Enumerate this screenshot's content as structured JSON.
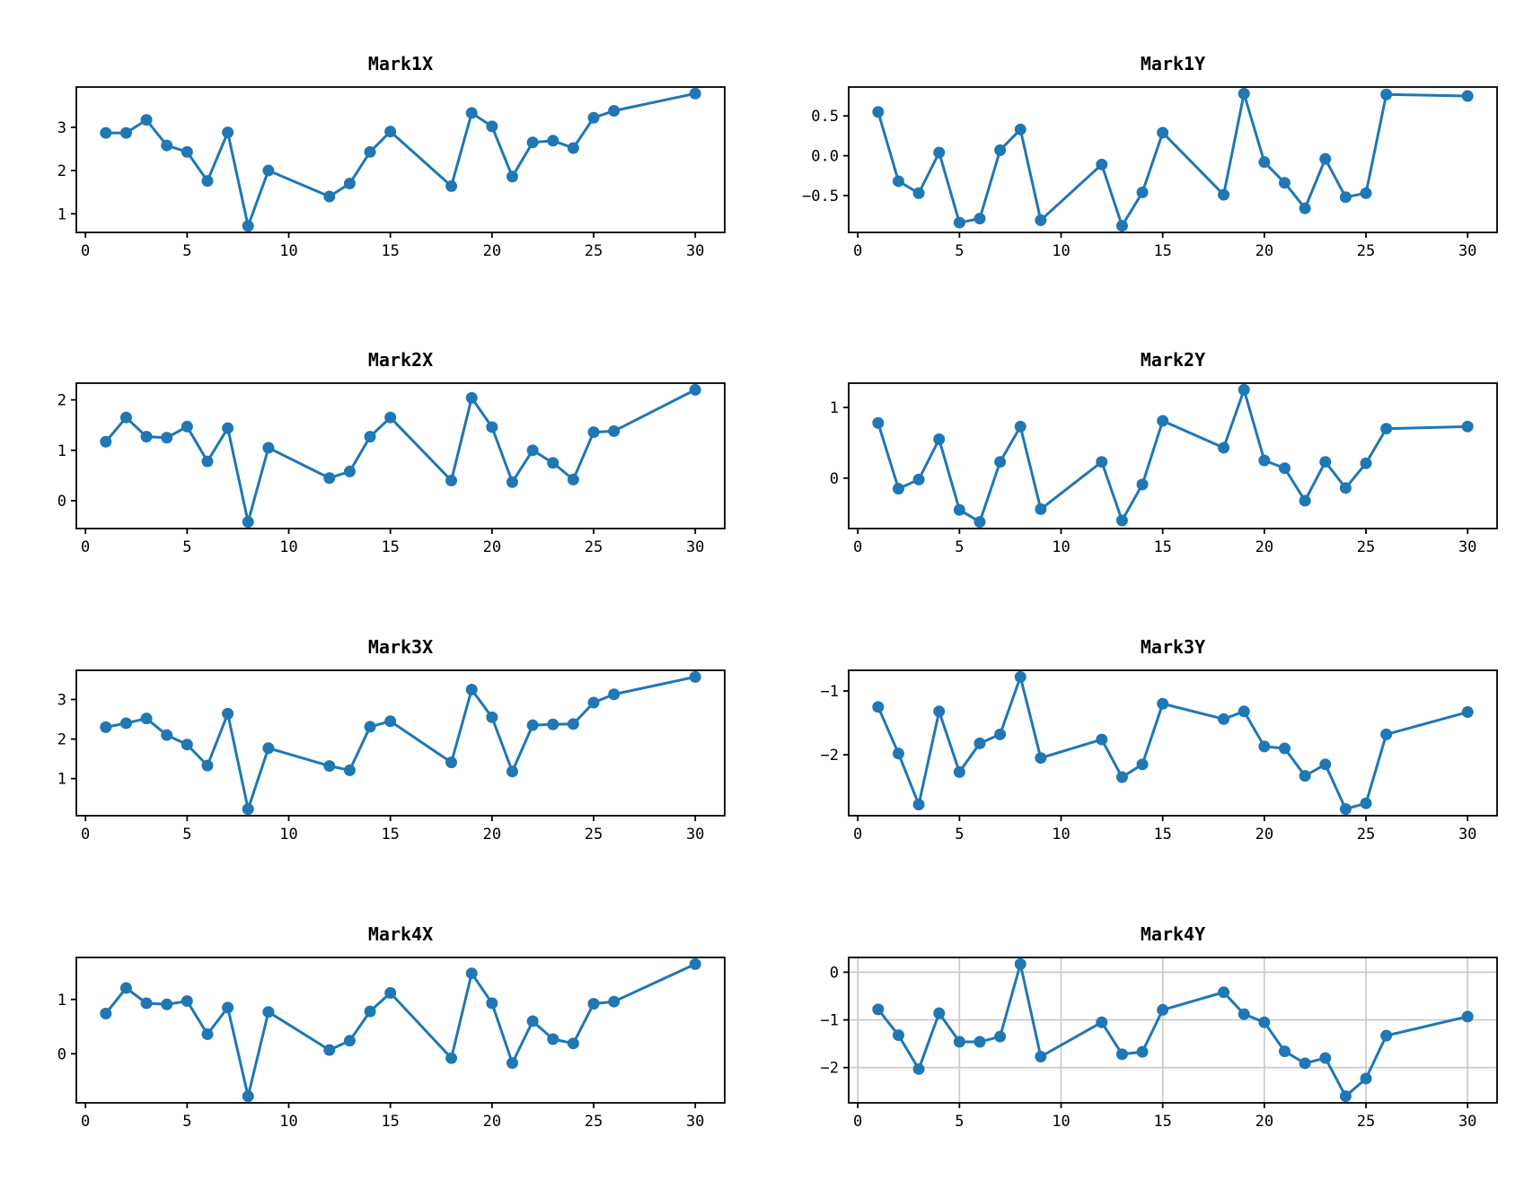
{
  "figure": {
    "background": "#ffffff",
    "line_color": "#1f77b4",
    "marker_color": "#1f77b4",
    "axis_color": "#000000",
    "grid_color": "#c8c8c8"
  },
  "chart_data": [
    {
      "type": "line",
      "title": "Mark1X",
      "x": [
        1,
        2,
        3,
        4,
        5,
        6,
        7,
        8,
        9,
        12,
        13,
        14,
        15,
        18,
        19,
        20,
        21,
        22,
        23,
        24,
        25,
        26,
        30
      ],
      "values": [
        2.87,
        2.87,
        3.17,
        2.58,
        2.43,
        1.76,
        2.88,
        0.72,
        2.0,
        1.4,
        1.7,
        2.43,
        2.9,
        1.64,
        3.33,
        3.02,
        1.86,
        2.65,
        2.69,
        2.52,
        3.22,
        3.38,
        3.78
      ],
      "xlim": [
        -0.45,
        31.45
      ],
      "ylim": [
        0.57,
        3.93
      ],
      "xticks": [
        {
          "v": 0,
          "label": "0"
        },
        {
          "v": 5,
          "label": "5"
        },
        {
          "v": 10,
          "label": "10"
        },
        {
          "v": 15,
          "label": "15"
        },
        {
          "v": 20,
          "label": "20"
        },
        {
          "v": 25,
          "label": "25"
        },
        {
          "v": 30,
          "label": "30"
        }
      ],
      "yticks": [
        {
          "v": 1,
          "label": "1"
        },
        {
          "v": 2,
          "label": "2"
        },
        {
          "v": 3,
          "label": "3"
        }
      ],
      "grid": false
    },
    {
      "type": "line",
      "title": "Mark1Y",
      "x": [
        1,
        2,
        3,
        4,
        5,
        6,
        7,
        8,
        9,
        12,
        13,
        14,
        15,
        18,
        19,
        20,
        21,
        22,
        23,
        24,
        25,
        26,
        30
      ],
      "values": [
        0.55,
        -0.32,
        -0.47,
        0.04,
        -0.84,
        -0.79,
        0.07,
        0.33,
        -0.81,
        -0.11,
        -0.88,
        -0.46,
        0.29,
        -0.49,
        0.78,
        -0.08,
        -0.34,
        -0.66,
        -0.04,
        -0.52,
        -0.47,
        0.77,
        0.75
      ],
      "xlim": [
        -0.45,
        31.45
      ],
      "ylim": [
        -0.963,
        0.863
      ],
      "xticks": [
        {
          "v": 0,
          "label": "0"
        },
        {
          "v": 5,
          "label": "5"
        },
        {
          "v": 10,
          "label": "10"
        },
        {
          "v": 15,
          "label": "15"
        },
        {
          "v": 20,
          "label": "20"
        },
        {
          "v": 25,
          "label": "25"
        },
        {
          "v": 30,
          "label": "30"
        }
      ],
      "yticks": [
        {
          "v": -0.5,
          "label": "−0.5"
        },
        {
          "v": 0.0,
          "label": "0.0"
        },
        {
          "v": 0.5,
          "label": "0.5"
        }
      ],
      "grid": false
    },
    {
      "type": "line",
      "title": "Mark2X",
      "x": [
        1,
        2,
        3,
        4,
        5,
        6,
        7,
        8,
        9,
        12,
        13,
        14,
        15,
        18,
        19,
        20,
        21,
        22,
        23,
        24,
        25,
        26,
        30
      ],
      "values": [
        1.17,
        1.65,
        1.27,
        1.25,
        1.47,
        0.78,
        1.44,
        -0.42,
        1.05,
        0.45,
        0.58,
        1.27,
        1.65,
        0.4,
        2.04,
        1.46,
        0.37,
        1.0,
        0.75,
        0.42,
        1.36,
        1.38,
        2.2
      ],
      "xlim": [
        -0.45,
        31.45
      ],
      "ylim": [
        -0.551,
        2.331
      ],
      "xticks": [
        {
          "v": 0,
          "label": "0"
        },
        {
          "v": 5,
          "label": "5"
        },
        {
          "v": 10,
          "label": "10"
        },
        {
          "v": 15,
          "label": "15"
        },
        {
          "v": 20,
          "label": "20"
        },
        {
          "v": 25,
          "label": "25"
        },
        {
          "v": 30,
          "label": "30"
        }
      ],
      "yticks": [
        {
          "v": 0,
          "label": "0"
        },
        {
          "v": 1,
          "label": "1"
        },
        {
          "v": 2,
          "label": "2"
        }
      ],
      "grid": false
    },
    {
      "type": "line",
      "title": "Mark2Y",
      "x": [
        1,
        2,
        3,
        4,
        5,
        6,
        7,
        8,
        9,
        12,
        13,
        14,
        15,
        18,
        19,
        20,
        21,
        22,
        23,
        24,
        25,
        26,
        30
      ],
      "values": [
        0.78,
        -0.15,
        -0.02,
        0.55,
        -0.45,
        -0.62,
        0.23,
        0.73,
        -0.44,
        0.23,
        -0.6,
        -0.09,
        0.81,
        0.43,
        1.25,
        0.25,
        0.14,
        -0.32,
        0.23,
        -0.14,
        0.21,
        0.7,
        0.73
      ],
      "xlim": [
        -0.45,
        31.45
      ],
      "ylim": [
        -0.714,
        1.344
      ],
      "xticks": [
        {
          "v": 0,
          "label": "0"
        },
        {
          "v": 5,
          "label": "5"
        },
        {
          "v": 10,
          "label": "10"
        },
        {
          "v": 15,
          "label": "15"
        },
        {
          "v": 20,
          "label": "20"
        },
        {
          "v": 25,
          "label": "25"
        },
        {
          "v": 30,
          "label": "30"
        }
      ],
      "yticks": [
        {
          "v": 0,
          "label": "0"
        },
        {
          "v": 1,
          "label": "1"
        }
      ],
      "grid": false
    },
    {
      "type": "line",
      "title": "Mark3X",
      "x": [
        1,
        2,
        3,
        4,
        5,
        6,
        7,
        8,
        9,
        12,
        13,
        14,
        15,
        18,
        19,
        20,
        21,
        22,
        23,
        24,
        25,
        26,
        30
      ],
      "values": [
        2.3,
        2.4,
        2.52,
        2.1,
        1.86,
        1.33,
        2.64,
        0.23,
        1.77,
        1.32,
        1.21,
        2.31,
        2.45,
        1.41,
        3.25,
        2.55,
        1.18,
        2.35,
        2.37,
        2.38,
        2.92,
        3.13,
        3.57
      ],
      "xlim": [
        -0.45,
        31.45
      ],
      "ylim": [
        0.063,
        3.737
      ],
      "xticks": [
        {
          "v": 0,
          "label": "0"
        },
        {
          "v": 5,
          "label": "5"
        },
        {
          "v": 10,
          "label": "10"
        },
        {
          "v": 15,
          "label": "15"
        },
        {
          "v": 20,
          "label": "20"
        },
        {
          "v": 25,
          "label": "25"
        },
        {
          "v": 30,
          "label": "30"
        }
      ],
      "yticks": [
        {
          "v": 1,
          "label": "1"
        },
        {
          "v": 2,
          "label": "2"
        },
        {
          "v": 3,
          "label": "3"
        }
      ],
      "grid": false
    },
    {
      "type": "line",
      "title": "Mark3Y",
      "x": [
        1,
        2,
        3,
        4,
        5,
        6,
        7,
        8,
        9,
        12,
        13,
        14,
        15,
        18,
        19,
        20,
        21,
        22,
        23,
        24,
        25,
        26,
        30
      ],
      "values": [
        -1.25,
        -1.98,
        -2.78,
        -1.32,
        -2.27,
        -1.82,
        -1.68,
        -0.78,
        -2.05,
        -1.76,
        -2.35,
        -2.15,
        -1.2,
        -1.44,
        -1.32,
        -1.87,
        -1.9,
        -2.33,
        -2.15,
        -2.85,
        -2.76,
        -1.68,
        -1.33
      ],
      "xlim": [
        -0.45,
        31.45
      ],
      "ylim": [
        -2.954,
        -0.676
      ],
      "xticks": [
        {
          "v": 0,
          "label": "0"
        },
        {
          "v": 5,
          "label": "5"
        },
        {
          "v": 10,
          "label": "10"
        },
        {
          "v": 15,
          "label": "15"
        },
        {
          "v": 20,
          "label": "20"
        },
        {
          "v": 25,
          "label": "25"
        },
        {
          "v": 30,
          "label": "30"
        }
      ],
      "yticks": [
        {
          "v": -2,
          "label": "−2"
        },
        {
          "v": -1,
          "label": "−1"
        }
      ],
      "grid": false
    },
    {
      "type": "line",
      "title": "Mark4X",
      "x": [
        1,
        2,
        3,
        4,
        5,
        6,
        7,
        8,
        9,
        12,
        13,
        14,
        15,
        18,
        19,
        20,
        21,
        22,
        23,
        24,
        25,
        26,
        30
      ],
      "values": [
        0.74,
        1.21,
        0.93,
        0.91,
        0.97,
        0.36,
        0.85,
        -0.78,
        0.77,
        0.07,
        0.24,
        0.78,
        1.12,
        -0.08,
        1.48,
        0.93,
        -0.17,
        0.6,
        0.27,
        0.19,
        0.92,
        0.96,
        1.65
      ],
      "xlim": [
        -0.45,
        31.45
      ],
      "ylim": [
        -0.902,
        1.772
      ],
      "xticks": [
        {
          "v": 0,
          "label": "0"
        },
        {
          "v": 5,
          "label": "5"
        },
        {
          "v": 10,
          "label": "10"
        },
        {
          "v": 15,
          "label": "15"
        },
        {
          "v": 20,
          "label": "20"
        },
        {
          "v": 25,
          "label": "25"
        },
        {
          "v": 30,
          "label": "30"
        }
      ],
      "yticks": [
        {
          "v": 0,
          "label": "0"
        },
        {
          "v": 1,
          "label": "1"
        }
      ],
      "grid": false
    },
    {
      "type": "line",
      "title": "Mark4Y",
      "x": [
        1,
        2,
        3,
        4,
        5,
        6,
        7,
        8,
        9,
        12,
        13,
        14,
        15,
        18,
        19,
        20,
        21,
        22,
        23,
        24,
        25,
        26,
        30
      ],
      "values": [
        -0.78,
        -1.32,
        -2.03,
        -0.86,
        -1.46,
        -1.46,
        -1.35,
        0.17,
        -1.77,
        -1.05,
        -1.72,
        -1.67,
        -0.79,
        -0.42,
        -0.88,
        -1.05,
        -1.66,
        -1.91,
        -1.8,
        -2.6,
        -2.23,
        -1.33,
        -0.93
      ],
      "xlim": [
        -0.45,
        31.45
      ],
      "ylim": [
        -2.739,
        0.309
      ],
      "xticks": [
        {
          "v": 0,
          "label": "0"
        },
        {
          "v": 5,
          "label": "5"
        },
        {
          "v": 10,
          "label": "10"
        },
        {
          "v": 15,
          "label": "15"
        },
        {
          "v": 20,
          "label": "20"
        },
        {
          "v": 25,
          "label": "25"
        },
        {
          "v": 30,
          "label": "30"
        }
      ],
      "yticks": [
        {
          "v": -2,
          "label": "−2"
        },
        {
          "v": -1,
          "label": "−1"
        },
        {
          "v": 0,
          "label": "0"
        }
      ],
      "grid": true
    }
  ]
}
